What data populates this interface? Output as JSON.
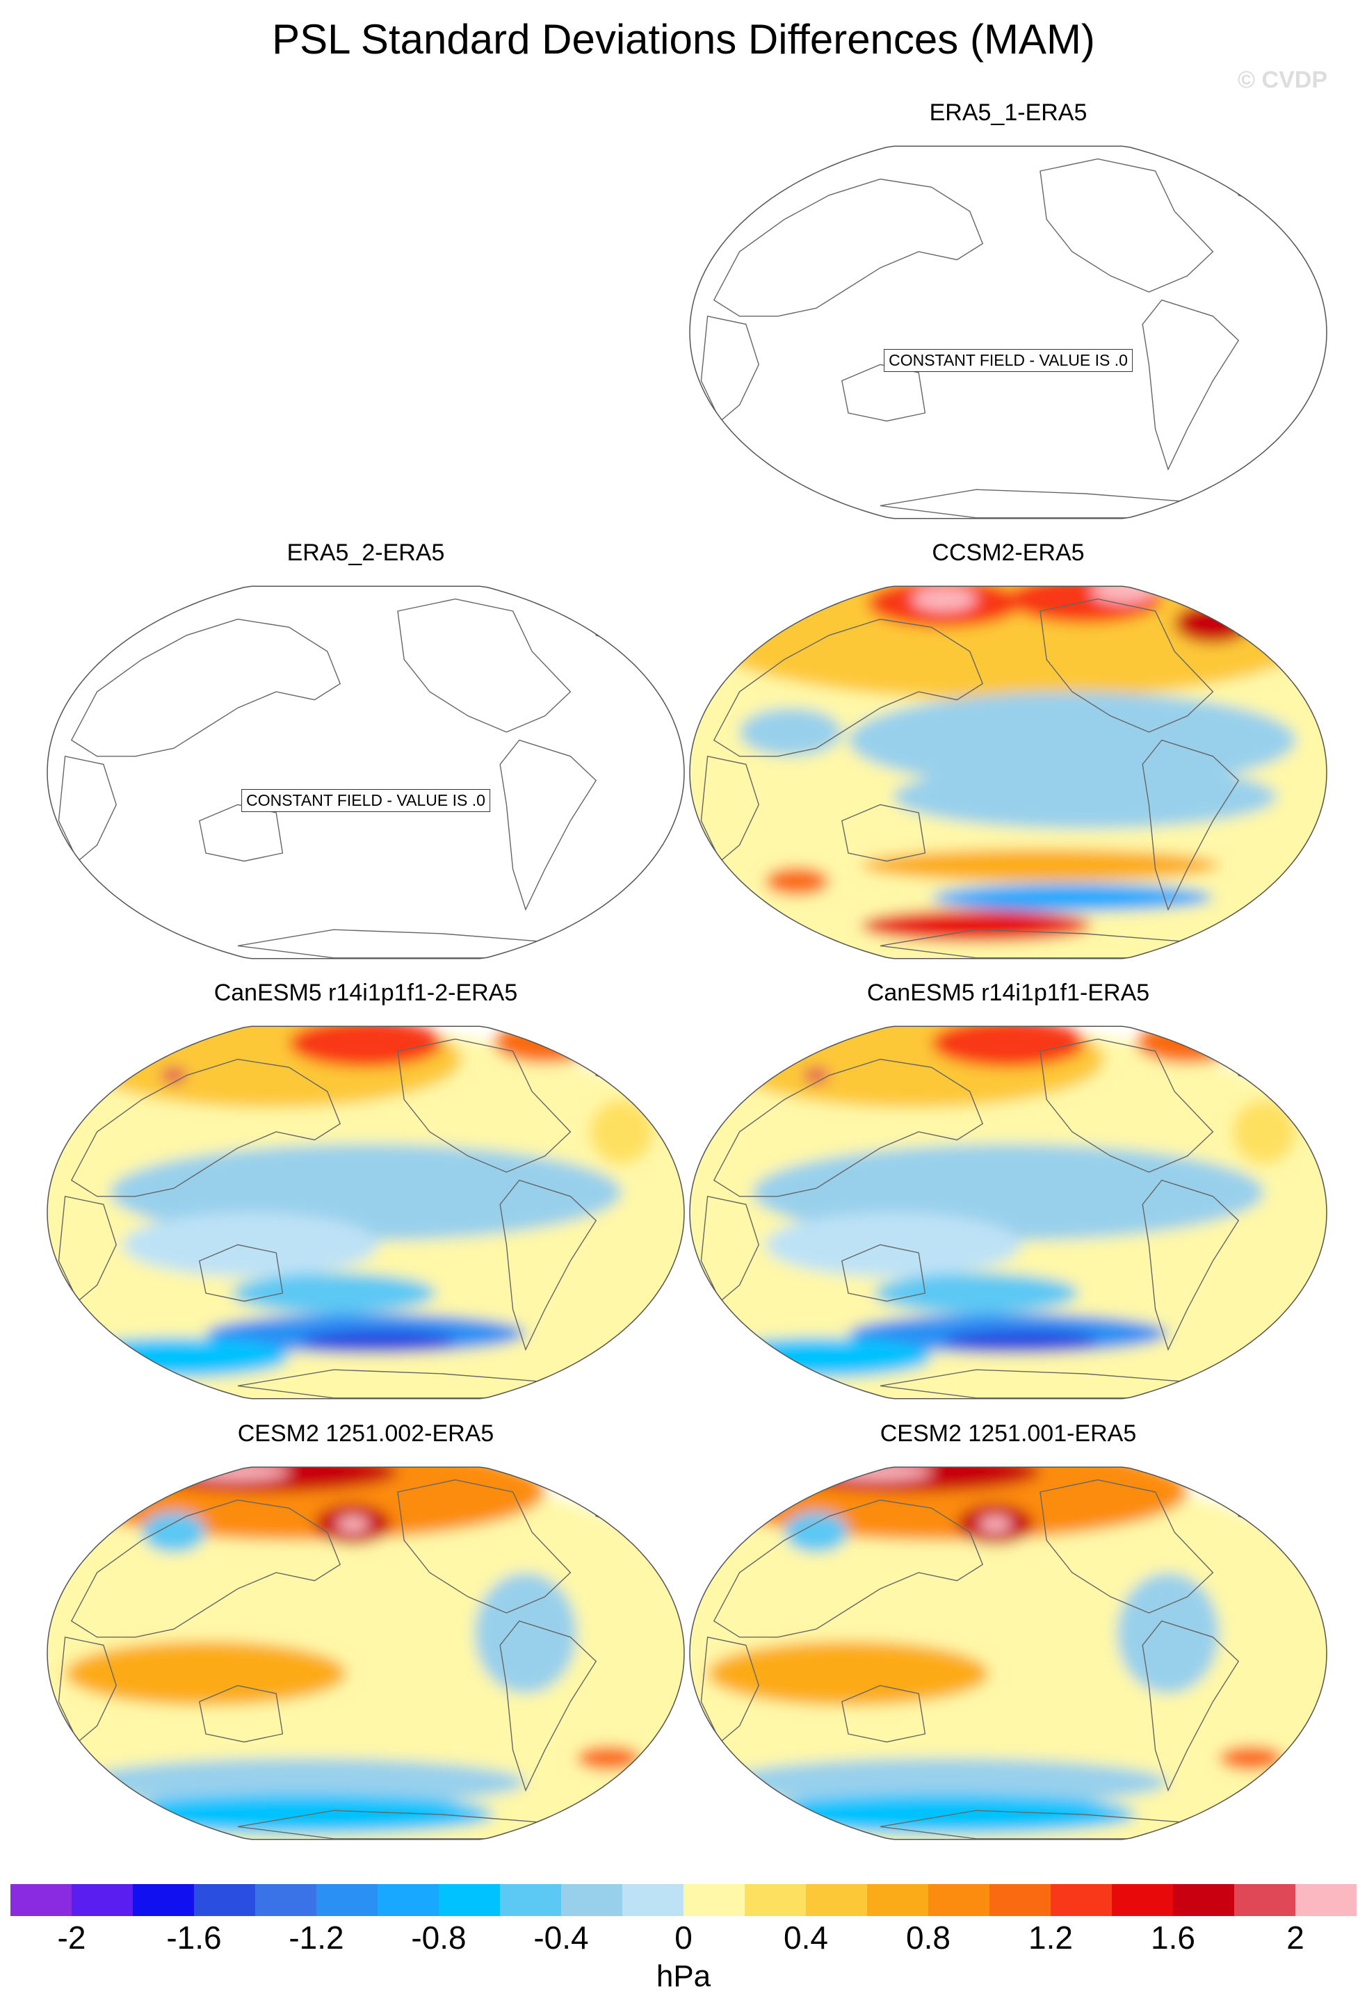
{
  "figure": {
    "title": "PSL Standard Deviations Differences (MAM)",
    "copyright": "© CVDP"
  },
  "panels": [
    {
      "id": "era5_1",
      "title": "ERA5_1-ERA5",
      "type": "constant",
      "constant_label": "CONSTANT FIELD - VALUE IS .0"
    },
    {
      "id": "era5_2",
      "title": "ERA5_2-ERA5",
      "type": "constant",
      "constant_label": "CONSTANT FIELD - VALUE IS .0"
    },
    {
      "id": "ccsm2",
      "title": "CCSM2-ERA5",
      "type": "field"
    },
    {
      "id": "canesm5_2",
      "title": "CanESM5 r14i1p1f1-2-ERA5",
      "type": "field"
    },
    {
      "id": "canesm5",
      "title": "CanESM5 r14i1p1f1-ERA5",
      "type": "field"
    },
    {
      "id": "cesm2_002",
      "title": "CESM2 1251.002-ERA5",
      "type": "field"
    },
    {
      "id": "cesm2_001",
      "title": "CESM2 1251.001-ERA5",
      "type": "field"
    }
  ],
  "colorbar": {
    "units": "hPa",
    "min": -2.2,
    "max": 2.2,
    "step": 0.2,
    "tick_labels": [
      "-2",
      "-1.6",
      "-1.2",
      "-0.8",
      "-0.4",
      "0",
      "0.4",
      "0.8",
      "1.2",
      "1.6",
      "2"
    ],
    "tick_values": [
      -2,
      -1.6,
      -1.2,
      -0.8,
      -0.4,
      0,
      0.4,
      0.8,
      1.2,
      1.6,
      2
    ],
    "colors": [
      "#8a2be2",
      "#5a1ff0",
      "#1010f0",
      "#2a4ee0",
      "#3a72e8",
      "#2a90f4",
      "#18a8ff",
      "#00c2ff",
      "#5cc8f4",
      "#98d0ec",
      "#bde2f6",
      "#fff8a8",
      "#fee060",
      "#fdc838",
      "#fcab18",
      "#fc8c10",
      "#fa6a10",
      "#f83818",
      "#e80a0a",
      "#c80010",
      "#e04858",
      "#fcb8c0"
    ]
  }
}
